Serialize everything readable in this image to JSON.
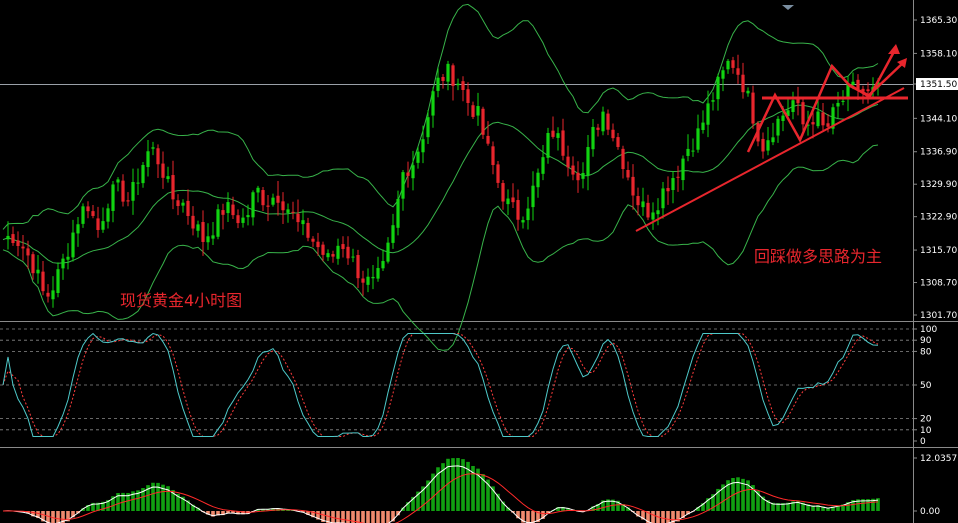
{
  "chart_data": {
    "type": "candlestick",
    "caption_left": "现货黄金4小时图",
    "caption_right": "回踩做多思路为主",
    "price_axis": {
      "ylim": [
        1298.5,
        1369.5
      ],
      "ticks": [
        "1365.30",
        "1358.10",
        "1351.50",
        "1344.10",
        "1336.90",
        "1329.90",
        "1322.90",
        "1315.70",
        "1308.70",
        "1301.70"
      ],
      "current_price": "1351.50"
    },
    "stoch_axis": {
      "ylim": [
        0,
        100
      ],
      "ticks": [
        "100",
        "90",
        "80",
        "50",
        "20",
        "10",
        "0"
      ],
      "levels": [
        80,
        50,
        20
      ]
    },
    "macd_axis": {
      "ticks": [
        "12.0357",
        "0.00"
      ]
    },
    "colors": {
      "bull": "#11d311",
      "bear": "#e8262d",
      "band": "#38b34a",
      "stoch_main": "#4ec9c9",
      "stoch_signal": "#ff3c3c",
      "histo_pos": "#11a011",
      "histo_neg": "#ef8a6e",
      "macd_line": "#ffffff",
      "signal_line": "#ff2a2a",
      "annotation": "#e8262d",
      "axis_text": "#ffffff"
    },
    "price_path": [
      1318,
      1319,
      1316,
      1312,
      1305,
      1309,
      1315,
      1322,
      1326,
      1320,
      1327,
      1329,
      1326,
      1333,
      1338,
      1334,
      1327,
      1326,
      1322,
      1318,
      1321,
      1325,
      1323,
      1322,
      1329,
      1326,
      1328,
      1325,
      1321,
      1319,
      1316,
      1313,
      1318,
      1314,
      1310,
      1308,
      1311,
      1320,
      1333,
      1335,
      1342,
      1351,
      1354,
      1353,
      1348,
      1345,
      1337,
      1330,
      1325,
      1323,
      1327,
      1333,
      1342,
      1338,
      1334,
      1332,
      1341,
      1346,
      1340,
      1334,
      1327,
      1324,
      1326,
      1330,
      1333,
      1338,
      1341,
      1347,
      1352,
      1357,
      1353,
      1346,
      1338,
      1342,
      1345,
      1348,
      1342,
      1345,
      1341,
      1346,
      1349,
      1351,
      1349,
      1350
    ]
  }
}
